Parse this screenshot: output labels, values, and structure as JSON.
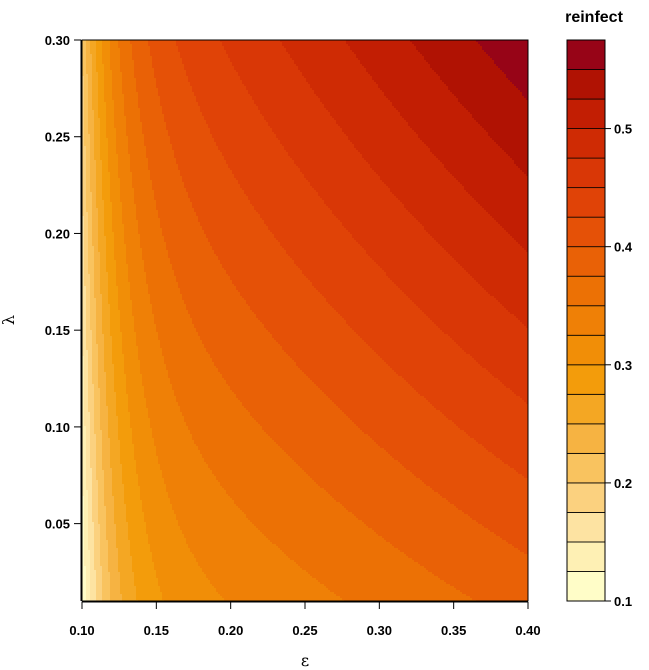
{
  "chart_data": {
    "type": "heatmap",
    "subtype": "filled-contour",
    "xlabel": "ε",
    "ylabel": "λ",
    "xlim": [
      0.1,
      0.4
    ],
    "ylim": [
      0.01,
      0.3
    ],
    "x_ticks": [
      0.1,
      0.15,
      0.2,
      0.25,
      0.3,
      0.35,
      0.4
    ],
    "x_tick_labels": [
      "0.10",
      "0.15",
      "0.20",
      "0.25",
      "0.30",
      "0.35",
      "0.40"
    ],
    "y_ticks": [
      0.05,
      0.1,
      0.15,
      0.2,
      0.25,
      0.3
    ],
    "y_tick_labels": [
      "0.05",
      "0.10",
      "0.15",
      "0.20",
      "0.25",
      "0.30"
    ],
    "colorbar": {
      "title": "reinfect",
      "range": [
        0.1,
        0.575
      ],
      "levels": [
        0.1,
        0.125,
        0.15,
        0.175,
        0.2,
        0.225,
        0.25,
        0.275,
        0.3,
        0.325,
        0.35,
        0.375,
        0.4,
        0.425,
        0.45,
        0.475,
        0.5,
        0.525,
        0.55,
        0.575
      ],
      "tick_values": [
        0.1,
        0.2,
        0.3,
        0.4,
        0.5
      ],
      "tick_labels": [
        "0.1",
        "0.2",
        "0.3",
        "0.4",
        "0.5"
      ],
      "colors": [
        "#FFFDC8",
        "#FEF0B4",
        "#FDE3A2",
        "#FBD17F",
        "#F9C35F",
        "#F6B342",
        "#F4A723",
        "#F39C0B",
        "#F18E07",
        "#EF8006",
        "#EC7105",
        "#E96106",
        "#E55107",
        "#E04307",
        "#D93706",
        "#CF2B04",
        "#C21E03",
        "#B01203",
        "#970417"
      ]
    },
    "model": {
      "description": "reinfect(ε, λ) estimated from contour bands",
      "value_at": [
        {
          "x": 0.1,
          "y": 0.01,
          "value": 0.1
        },
        {
          "x": 0.15,
          "y": 0.01,
          "value": 0.3
        },
        {
          "x": 0.25,
          "y": 0.01,
          "value": 0.34
        },
        {
          "x": 0.4,
          "y": 0.01,
          "value": 0.38
        },
        {
          "x": 0.2,
          "y": 0.15,
          "value": 0.39
        },
        {
          "x": 0.3,
          "y": 0.15,
          "value": 0.44
        },
        {
          "x": 0.25,
          "y": 0.3,
          "value": 0.52
        },
        {
          "x": 0.4,
          "y": 0.3,
          "value": 0.56
        }
      ]
    }
  }
}
